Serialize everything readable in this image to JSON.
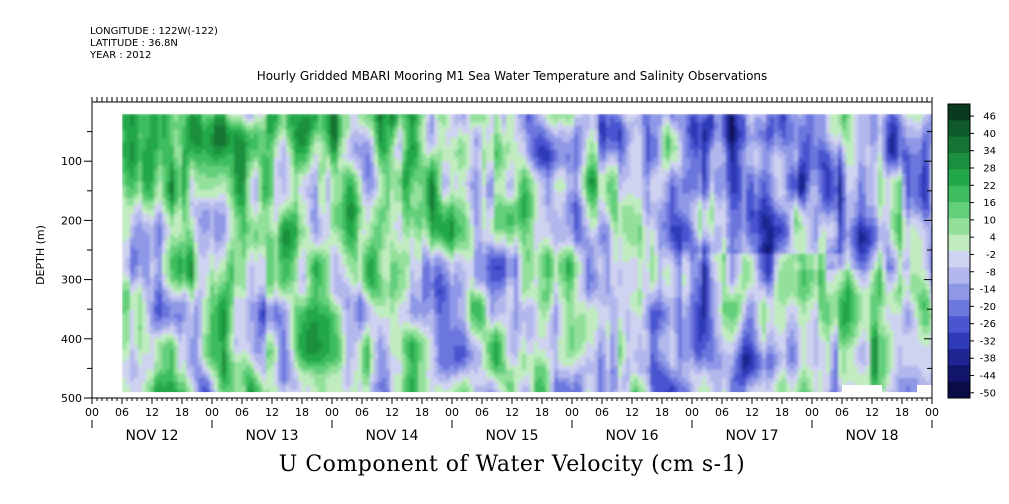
{
  "header": {
    "longitude": "LONGITUDE : 122W(-122)",
    "latitude": "LATITUDE : 36.8N",
    "year": "YEAR : 2012"
  },
  "title": "Hourly Gridded MBARI Mooring M1 Sea Water Temperature and Salinity Observations",
  "caption": "U Component of Water Velocity (cm s-1)",
  "chart_data": {
    "type": "heatmap",
    "variable": "U Component of Water Velocity",
    "units": "cm s-1",
    "ylabel": "DEPTH (m)",
    "y_axis_inverted": true,
    "ylim": [
      500,
      0
    ],
    "y_ticks": [
      100,
      200,
      300,
      400,
      500
    ],
    "x_hour_labels": [
      "00",
      "06",
      "12",
      "18",
      "00",
      "06",
      "12",
      "18",
      "00",
      "06",
      "12",
      "18",
      "00",
      "06",
      "12",
      "18",
      "00",
      "06",
      "12",
      "18",
      "00",
      "06",
      "12",
      "18",
      "00",
      "06",
      "12",
      "18",
      "00"
    ],
    "x_day_labels": [
      "NOV 12",
      "NOV 13",
      "NOV 14",
      "NOV 15",
      "NOV 16",
      "NOV 17",
      "NOV 18"
    ],
    "colorbar": {
      "levels": [
        46,
        40,
        34,
        28,
        22,
        16,
        10,
        4,
        -2,
        -8,
        -14,
        -20,
        -26,
        -32,
        -38,
        -44,
        -50
      ],
      "min": -50,
      "max": 50,
      "colors": [
        "#0b3b1e",
        "#0f5a2a",
        "#147433",
        "#1a8f3d",
        "#22a848",
        "#3dbd5d",
        "#63cf7a",
        "#93e09b",
        "#c0ecc0",
        "#cfd2f0",
        "#b2b8ec",
        "#8f98e6",
        "#6c77de",
        "#4a55d0",
        "#2f3ab8",
        "#1e2592",
        "#12166b",
        "#0a0c48"
      ]
    },
    "depth_range_data": [
      20,
      490
    ],
    "time_coverage": "NOV 12 06 to NOV 18 24",
    "field_description": "positive (green) eastward currents dominant near surface NOV 12-14; negative (blue) westward currents dominant at depth and after NOV 16"
  }
}
